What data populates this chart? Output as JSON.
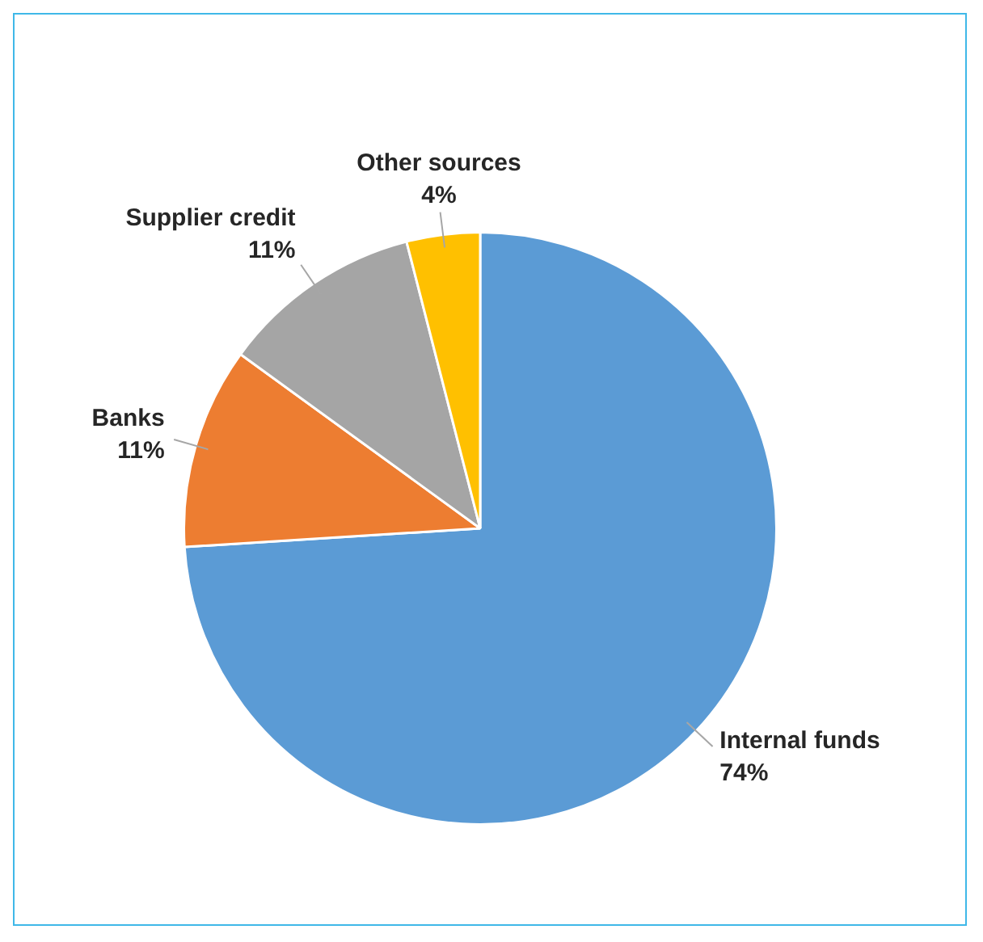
{
  "chart_data": {
    "type": "pie",
    "categories": [
      "Internal funds",
      "Banks",
      "Supplier credit",
      "Other sources"
    ],
    "values": [
      74,
      11,
      11,
      4
    ],
    "value_labels": [
      "74%",
      "11%",
      "11%",
      "4%"
    ],
    "colors": [
      "#5b9bd5",
      "#ed7d31",
      "#a5a5a5",
      "#ffc000"
    ],
    "legend": false
  }
}
